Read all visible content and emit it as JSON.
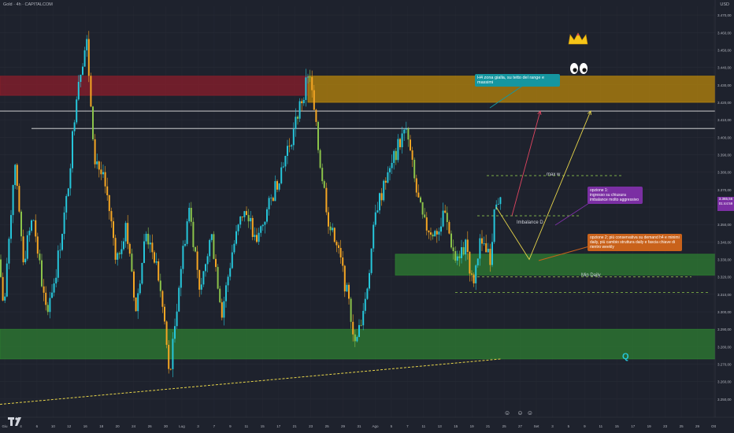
{
  "header": {
    "symbol": "Gold · 4h · CAPITALCOM"
  },
  "axis": {
    "currency": "USD"
  },
  "price_badge": {
    "price": "3.365,56",
    "countdown": "01:44:59"
  },
  "notes": {
    "h4": "H4 zona gialla, su tetto del range e massimi",
    "opt1_title": "opzione 1:",
    "opt1_text": "ingresso su chiusura imbalance molto aggressivo",
    "opt2_text": "opzione 2; più conservativa su demand h4 e minimi daily, più cambio struttura daily e fascia chiave di rientro weekly"
  },
  "labels": {
    "max_w": "max w",
    "imbalance": "Imbalance D",
    "min_daily": "Min Daily",
    "q_mark": "Q"
  },
  "colors": {
    "background": "#1e222d",
    "up_candle": "#26c6da",
    "down_candle": "#f5a623",
    "range_candle": "#8bc34a",
    "green_zone": "#2e7d32",
    "red_zone": "#8b1e2b",
    "orange_zone": "#b8860b",
    "trend_line": "#e6d44a"
  },
  "chart_data": {
    "type": "candlestick",
    "x_ticks": [
      "Giu",
      "4",
      "6",
      "10",
      "12",
      "16",
      "18",
      "20",
      "24",
      "26",
      "30",
      "Lug",
      "3",
      "7",
      "9",
      "11",
      "15",
      "17",
      "21",
      "23",
      "25",
      "29",
      "31",
      "Ago",
      "5",
      "7",
      "11",
      "13",
      "15",
      "19",
      "21",
      "25",
      "27",
      "Set",
      "3",
      "5",
      "9",
      "11",
      "15",
      "17",
      "19",
      "23",
      "25",
      "29",
      "Ott"
    ],
    "y_ticks": [
      "3.470,00",
      "3.460,00",
      "3.450,00",
      "3.440,00",
      "3.430,00",
      "3.420,00",
      "3.410,00",
      "3.400,00",
      "3.390,00",
      "3.380,00",
      "3.370,00",
      "3.360,00",
      "3.350,00",
      "3.340,00",
      "3.330,00",
      "3.320,00",
      "3.310,00",
      "3.300,00",
      "3.290,00",
      "3.280,00",
      "3.270,00",
      "3.260,00",
      "3.250,00"
    ],
    "ylim": [
      3245,
      3475
    ],
    "path_points": [
      [
        3330,
        -1
      ],
      [
        3300,
        5
      ],
      [
        3385,
        18
      ],
      [
        3330,
        30
      ],
      [
        3355,
        42
      ],
      [
        3300,
        58
      ],
      [
        3320,
        70
      ],
      [
        3365,
        85
      ],
      [
        3430,
        98
      ],
      [
        3455,
        110
      ],
      [
        3390,
        120
      ],
      [
        3370,
        135
      ],
      [
        3330,
        148
      ],
      [
        3350,
        160
      ],
      [
        3300,
        172
      ],
      [
        3345,
        185
      ],
      [
        3330,
        198
      ],
      [
        3290,
        210
      ],
      [
        3260,
        215
      ],
      [
        3320,
        228
      ],
      [
        3360,
        240
      ],
      [
        3310,
        255
      ],
      [
        3345,
        268
      ],
      [
        3300,
        282
      ],
      [
        3335,
        295
      ],
      [
        3360,
        310
      ],
      [
        3340,
        325
      ],
      [
        3365,
        345
      ],
      [
        3400,
        370
      ],
      [
        3430,
        388
      ],
      [
        3440,
        392
      ],
      [
        3390,
        405
      ],
      [
        3350,
        418
      ],
      [
        3330,
        432
      ],
      [
        3300,
        445
      ],
      [
        3280,
        452
      ],
      [
        3310,
        465
      ],
      [
        3360,
        478
      ],
      [
        3380,
        495
      ],
      [
        3395,
        505
      ],
      [
        3405,
        516
      ],
      [
        3370,
        528
      ],
      [
        3350,
        538
      ],
      [
        3345,
        552
      ],
      [
        3355,
        565
      ],
      [
        3330,
        578
      ],
      [
        3340,
        592
      ],
      [
        3315,
        600
      ],
      [
        3340,
        610
      ],
      [
        3330,
        622
      ],
      [
        3365,
        630
      ],
      [
        3362,
        635
      ]
    ],
    "zones": [
      {
        "color": "red",
        "y1": 3435,
        "y2": 3424,
        "x1": 0,
        "x2": 391
      },
      {
        "color": "orange",
        "y1": 3435,
        "y2": 3420,
        "x1": 391,
        "x2": 908
      },
      {
        "color": "green",
        "y1": 3333,
        "y2": 3321,
        "x1": 502,
        "x2": 908
      },
      {
        "color": "green",
        "y1": 3290,
        "y2": 3273,
        "x1": 0,
        "x2": 908
      }
    ],
    "levels": [
      {
        "y": 3415,
        "x1": 0,
        "x2": 908,
        "style": "solid"
      },
      {
        "y": 3405,
        "x1": 40,
        "x2": 908,
        "style": "solid"
      },
      {
        "y": 3378,
        "x1": 618,
        "x2": 790,
        "style": "dashed"
      },
      {
        "y": 3355,
        "x1": 606,
        "x2": 735,
        "style": "dashed"
      },
      {
        "y": 3320,
        "x1": 600,
        "x2": 878,
        "style": "dashed"
      },
      {
        "y": 3311,
        "x1": 578,
        "x2": 900,
        "style": "dashed"
      }
    ],
    "scenarios": [
      {
        "color": "#e04560",
        "points": [
          [
            3355,
            650
          ],
          [
            3415,
            686
          ]
        ]
      },
      {
        "color": "#e6d44a",
        "points": [
          [
            3360,
            630
          ],
          [
            3330,
            672
          ],
          [
            3415,
            750
          ]
        ]
      }
    ],
    "trend_line": {
      "from": [
        3247,
        0
      ],
      "to": [
        3273,
        636
      ]
    }
  }
}
